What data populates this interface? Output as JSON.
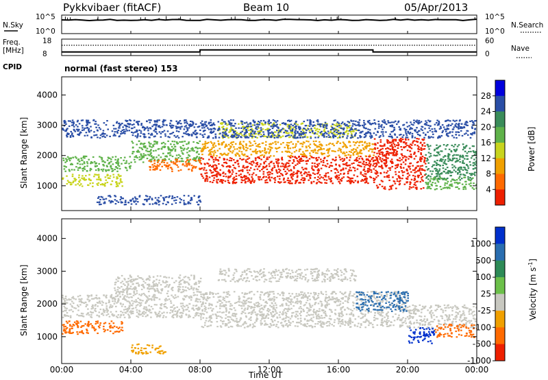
{
  "header": {
    "title": "Pykkvibaer (fitACF)",
    "beam": "Beam 10",
    "date": "05/Apr/2013"
  },
  "summary": {
    "nsky_label": "N.Sky",
    "nsky_ticks": [
      "10^5",
      "10^0"
    ],
    "nsearch_label": "N.Search",
    "nsearch_ticks": [
      "10^5",
      "10^0"
    ],
    "freq_label_1": "Freq.",
    "freq_label_2": "[MHz]",
    "freq_ticks": [
      "18",
      "8"
    ],
    "nave_label": "Nave",
    "nave_ticks": [
      "60",
      "0"
    ],
    "cpid_label": "CPID",
    "cpid_text": "normal (fast stereo) 153",
    "freq_series": [
      {
        "t": 0,
        "f": 10.2
      },
      {
        "t": 8,
        "f": 10.2
      },
      {
        "t": 8,
        "f": 11.4
      },
      {
        "t": 18,
        "f": 11.4
      },
      {
        "t": 18,
        "f": 10.2
      },
      {
        "t": 24,
        "f": 10.2
      }
    ]
  },
  "chart_data": [
    {
      "type": "heatmap",
      "name": "power",
      "ylabel": "Slant Range [km]",
      "yticks": [
        "4000",
        "3000",
        "2000",
        "1000"
      ],
      "ylim": [
        180,
        4600
      ],
      "xlim": [
        0,
        24
      ],
      "colorbar_label": "Power [dB]",
      "colorbar_ticks": [
        "28",
        "24",
        "20",
        "16",
        "12",
        "8",
        "4"
      ],
      "colors": [
        "#0000dd",
        "#2a4ea6",
        "#3a8c5a",
        "#5fb24a",
        "#c8d41e",
        "#f0a000",
        "#ff6a00",
        "#ee2000"
      ],
      "bands": [
        {
          "t0": 0,
          "t1": 4,
          "r0": 1500,
          "r1": 2000,
          "color": "#5fb24a"
        },
        {
          "t0": 0,
          "t1": 3.5,
          "r0": 1000,
          "r1": 1400,
          "color": "#c8d41e"
        },
        {
          "t0": 0,
          "t1": 8,
          "r0": 2600,
          "r1": 3200,
          "color": "#2a4ea6"
        },
        {
          "t0": 4,
          "t1": 8,
          "r0": 1800,
          "r1": 2500,
          "color": "#5fb24a"
        },
        {
          "t0": 5,
          "t1": 8,
          "r0": 1500,
          "r1": 1900,
          "color": "#ff6a00"
        },
        {
          "t0": 8,
          "t1": 18,
          "r0": 1100,
          "r1": 2000,
          "color": "#ee2000"
        },
        {
          "t0": 8,
          "t1": 18,
          "r0": 2000,
          "r1": 2500,
          "color": "#f0a000"
        },
        {
          "t0": 9,
          "t1": 17,
          "r0": 2600,
          "r1": 3100,
          "color": "#c8d41e"
        },
        {
          "t0": 8,
          "t1": 24,
          "r0": 2600,
          "r1": 3200,
          "color": "#2a4ea6"
        },
        {
          "t0": 18,
          "t1": 21,
          "r0": 900,
          "r1": 2600,
          "color": "#ee2000"
        },
        {
          "t0": 21,
          "t1": 24,
          "r0": 1200,
          "r1": 2400,
          "color": "#3a8c5a"
        },
        {
          "t0": 21,
          "t1": 24,
          "r0": 900,
          "r1": 1300,
          "color": "#5fb24a"
        },
        {
          "t0": 2,
          "t1": 8,
          "r0": 400,
          "r1": 700,
          "color": "#2a4ea6"
        }
      ]
    },
    {
      "type": "heatmap",
      "name": "velocity",
      "ylabel": "Slant Range [km]",
      "yticks": [
        "4000",
        "3000",
        "2000",
        "1000"
      ],
      "ylim": [
        180,
        4600
      ],
      "xlim": [
        0,
        24
      ],
      "xticks": [
        "00:00",
        "04:00",
        "08:00",
        "12:00",
        "16:00",
        "20:00",
        "00:00"
      ],
      "xlabel": "Time UT",
      "colorbar_label": "Velocity [m s",
      "colorbar_sup": "-1",
      "colorbar_label_end": "]",
      "colorbar_ticks": [
        "1000",
        "500",
        "100",
        "25",
        "-25",
        "-100",
        "-500",
        "-1000"
      ],
      "colors": [
        "#0030cc",
        "#2a6eb0",
        "#2e8b57",
        "#6cc04a",
        "#c8c8c0",
        "#f0a000",
        "#ff6a00",
        "#ee2000"
      ],
      "bands": [
        {
          "t0": 0,
          "t1": 3.5,
          "r0": 1100,
          "r1": 1500,
          "color": "#ff6a00"
        },
        {
          "t0": 0,
          "t1": 8,
          "r0": 1600,
          "r1": 2300,
          "color": "#c8c8c0"
        },
        {
          "t0": 3,
          "t1": 8,
          "r0": 2300,
          "r1": 2900,
          "color": "#c8c8c0"
        },
        {
          "t0": 8,
          "t1": 20,
          "r0": 1300,
          "r1": 2400,
          "color": "#c8c8c0"
        },
        {
          "t0": 9,
          "t1": 17,
          "r0": 2700,
          "r1": 3100,
          "color": "#c8c8c0"
        },
        {
          "t0": 17,
          "t1": 20,
          "r0": 1800,
          "r1": 2400,
          "color": "#2a6eb0"
        },
        {
          "t0": 20,
          "t1": 21.5,
          "r0": 800,
          "r1": 1300,
          "color": "#0030cc"
        },
        {
          "t0": 20,
          "t1": 24,
          "r0": 1300,
          "r1": 2000,
          "color": "#c8c8c0"
        },
        {
          "t0": 21.5,
          "t1": 24,
          "r0": 1000,
          "r1": 1400,
          "color": "#ff6a00"
        },
        {
          "t0": 4,
          "t1": 6,
          "r0": 500,
          "r1": 800,
          "color": "#f0a000"
        }
      ]
    }
  ]
}
